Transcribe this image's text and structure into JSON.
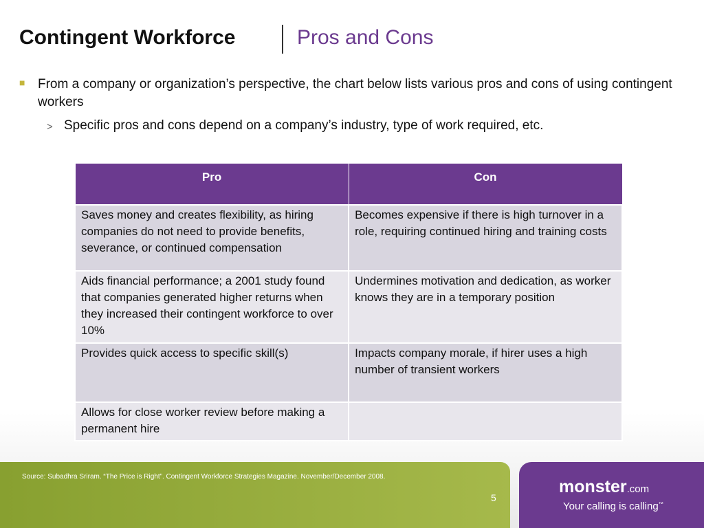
{
  "header": {
    "title": "Contingent Workforce",
    "subtitle": "Pros and Cons"
  },
  "bullets": [
    {
      "text": "From a company or organization’s perspective, the chart below lists various pros and cons of using contingent workers",
      "sub": [
        "Specific pros and cons depend on a company’s industry, type of work required, etc."
      ]
    }
  ],
  "table": {
    "header": [
      "Pro",
      "Con"
    ],
    "rows": [
      [
        "Saves money and creates flexibility, as hiring companies do not need to provide benefits, severance, or continued compensation",
        "Becomes expensive if there is high turnover in a role, requiring continued hiring and training costs"
      ],
      [
        "Aids financial performance; a 2001 study found that companies generated higher returns when they increased their contingent workforce to over 10%",
        "Undermines motivation and dedication, as worker knows they are in a temporary position"
      ],
      [
        "Provides quick access to specific skill(s)",
        "Impacts company morale, if hirer uses a high number of transient workers"
      ],
      [
        "Allows for close worker review before making a permanent hire",
        null
      ]
    ]
  },
  "footer": {
    "source": "Source: Subadhra Sriram. “The Price is Right”. Contingent Workforce Strategies Magazine. November/December 2008.",
    "page": "5"
  },
  "logo": {
    "name": "monster",
    "suffix": ".com",
    "tagline": "Your calling is calling",
    "mark": "™"
  }
}
